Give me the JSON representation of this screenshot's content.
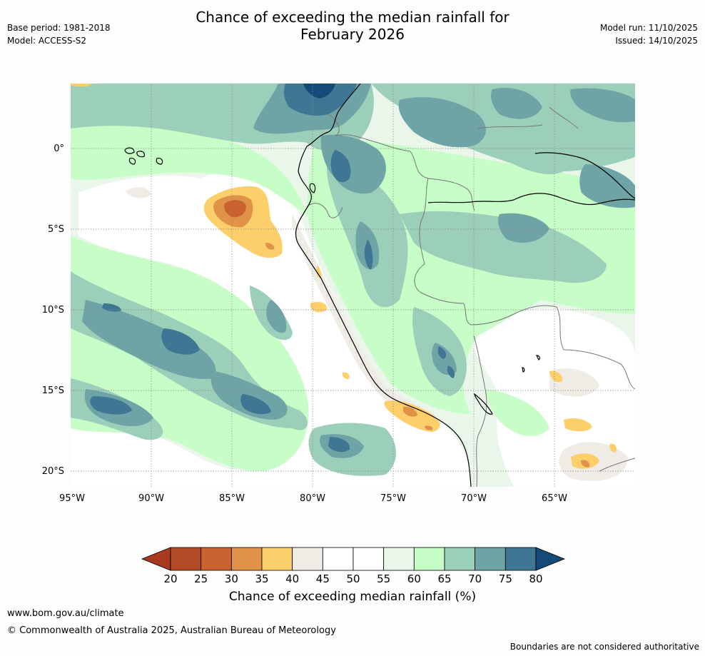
{
  "header": {
    "title_line1": "Chance of exceeding the median rainfall for",
    "title_line2": "February 2026",
    "base_period": "Base period: 1981-2018",
    "model": "Model: ACCESS-S2",
    "model_run": "Model run: 11/10/2025",
    "issued": "Issued: 14/10/2025"
  },
  "map": {
    "lon_range": [
      -95,
      -60
    ],
    "lat_range": [
      -21,
      4
    ],
    "lon_ticks": [
      "95°W",
      "90°W",
      "85°W",
      "80°W",
      "75°W",
      "70°W",
      "65°W"
    ],
    "lat_ticks": [
      "0°",
      "5°S",
      "10°S",
      "15°S",
      "20°S"
    ],
    "grid": true
  },
  "colorbar": {
    "ticks": [
      "20",
      "25",
      "30",
      "35",
      "40",
      "45",
      "50",
      "55",
      "60",
      "65",
      "70",
      "75",
      "80"
    ],
    "colors": [
      "#a83a22",
      "#b34a26",
      "#c9622e",
      "#e09248",
      "#fdcf6a",
      "#efece6",
      "#ffffff",
      "#ffffff",
      "#ebf6eb",
      "#c7fdc7",
      "#9ccfba",
      "#6ea4a6",
      "#3f7693",
      "#134a78"
    ],
    "label": "Chance of exceeding median rainfall (%)"
  },
  "footer": {
    "url": "www.bom.gov.au/climate",
    "copyright": "© Commonwealth of Australia 2025, Australian Bureau of Meteorology",
    "note": "Boundaries are not considered authoritative"
  }
}
